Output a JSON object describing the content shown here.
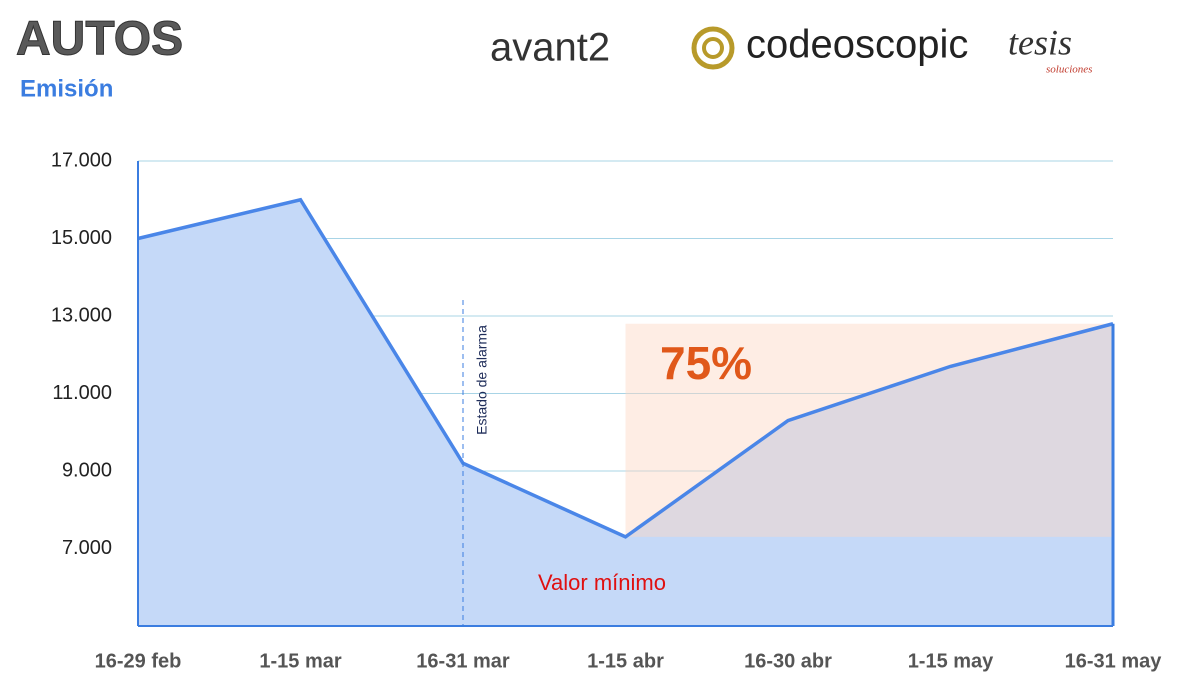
{
  "header": {
    "title": "AUTOS",
    "subtitle": "Emisión",
    "logos": [
      "avant2",
      "codeoscopic",
      "tesis",
      "soluciones"
    ]
  },
  "chart_data": {
    "type": "area",
    "categories": [
      "16-29 feb",
      "1-15 mar",
      "16-31 mar",
      "1-15 abr",
      "16-30 abr",
      "1-15 may",
      "16-31 may"
    ],
    "values": [
      15000,
      16000,
      9200,
      7300,
      10300,
      11700,
      12800
    ],
    "color": "#4a86e8",
    "fill": "#c5d9f8",
    "ylim": [
      5000,
      17000
    ],
    "yticks": [
      {
        "value": 7000,
        "label": "7.000"
      },
      {
        "value": 9000,
        "label": "9.000"
      },
      {
        "value": 11000,
        "label": "11.000"
      },
      {
        "value": 13000,
        "label": "13.000"
      },
      {
        "value": 15000,
        "label": "15.000"
      },
      {
        "value": 17000,
        "label": "17.000"
      }
    ],
    "grid": true,
    "annotations": {
      "event": "Estado de alarma",
      "percent": "75%",
      "minimum": "Valor mínimo"
    }
  }
}
